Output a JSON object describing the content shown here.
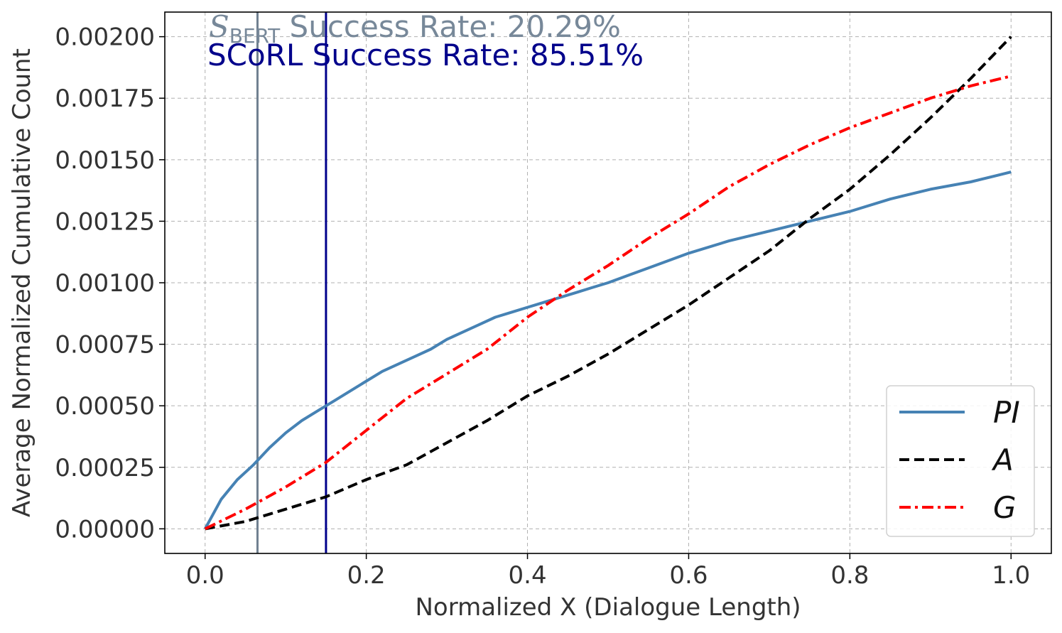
{
  "chart_data": {
    "type": "line",
    "title": "",
    "xlabel": "Normalized X (Dialogue Length)",
    "ylabel": "Average Normalized Cumulative Count",
    "xlim": [
      -0.05,
      1.05
    ],
    "ylim": [
      -0.0001,
      0.0021
    ],
    "grid": true,
    "legend_position": "lower-right",
    "x_ticks": [
      0.0,
      0.2,
      0.4,
      0.6,
      0.8,
      1.0
    ],
    "x_tick_labels": [
      "0.0",
      "0.2",
      "0.4",
      "0.6",
      "0.8",
      "1.0"
    ],
    "y_ticks": [
      0.0,
      0.00025,
      0.0005,
      0.00075,
      0.001,
      0.00125,
      0.0015,
      0.00175,
      0.002
    ],
    "y_tick_labels": [
      "0.00000",
      "0.00025",
      "0.00050",
      "0.00075",
      "0.00100",
      "0.00125",
      "0.00150",
      "0.00175",
      "0.00200"
    ],
    "series": [
      {
        "name": "PI",
        "color": "#4682b4",
        "style": "solid",
        "x": [
          0.0,
          0.02,
          0.04,
          0.06,
          0.08,
          0.1,
          0.12,
          0.14,
          0.16,
          0.18,
          0.2,
          0.22,
          0.24,
          0.26,
          0.28,
          0.3,
          0.32,
          0.34,
          0.36,
          0.38,
          0.4,
          0.42,
          0.44,
          0.46,
          0.48,
          0.5,
          0.55,
          0.6,
          0.65,
          0.7,
          0.75,
          0.8,
          0.85,
          0.9,
          0.95,
          1.0
        ],
        "values": [
          0.0,
          0.00012,
          0.0002,
          0.00026,
          0.00033,
          0.00039,
          0.00044,
          0.00048,
          0.00052,
          0.00056,
          0.0006,
          0.00064,
          0.00067,
          0.0007,
          0.00073,
          0.00077,
          0.0008,
          0.00083,
          0.00086,
          0.00088,
          0.0009,
          0.00092,
          0.00094,
          0.00096,
          0.00098,
          0.001,
          0.00106,
          0.00112,
          0.00117,
          0.00121,
          0.00125,
          0.00129,
          0.00134,
          0.00138,
          0.00141,
          0.00145
        ]
      },
      {
        "name": "A",
        "color": "#000000",
        "style": "dashed",
        "x": [
          0.0,
          0.05,
          0.1,
          0.15,
          0.2,
          0.25,
          0.3,
          0.35,
          0.4,
          0.45,
          0.5,
          0.55,
          0.6,
          0.65,
          0.7,
          0.75,
          0.8,
          0.85,
          0.9,
          0.95,
          1.0
        ],
        "values": [
          0.0,
          3e-05,
          8e-05,
          0.00013,
          0.0002,
          0.00026,
          0.00035,
          0.00044,
          0.00054,
          0.00062,
          0.00071,
          0.00081,
          0.00091,
          0.00102,
          0.00113,
          0.00126,
          0.00138,
          0.00152,
          0.00167,
          0.00183,
          0.002
        ]
      },
      {
        "name": "G",
        "color": "#ff0000",
        "style": "dashdot",
        "x": [
          0.0,
          0.05,
          0.1,
          0.15,
          0.2,
          0.25,
          0.3,
          0.35,
          0.4,
          0.45,
          0.5,
          0.55,
          0.6,
          0.65,
          0.7,
          0.75,
          0.8,
          0.85,
          0.9,
          0.95,
          1.0
        ],
        "values": [
          0.0,
          8e-05,
          0.00017,
          0.00027,
          0.0004,
          0.00053,
          0.00063,
          0.00073,
          0.00086,
          0.00097,
          0.00107,
          0.00118,
          0.00128,
          0.00139,
          0.00148,
          0.00156,
          0.00163,
          0.00169,
          0.00175,
          0.0018,
          0.00184
        ]
      }
    ],
    "vlines": [
      {
        "x": 0.065,
        "color": "#708090"
      },
      {
        "x": 0.15,
        "color": "#00008b"
      }
    ],
    "annotations": [
      {
        "symbol": "S",
        "subscript": "BERT",
        "text": " Success Rate: 20.29%",
        "color": "#778899"
      },
      {
        "symbol": "",
        "subscript": "",
        "text": "SCoRL Success Rate: 85.51%",
        "color": "#00008b"
      }
    ]
  }
}
